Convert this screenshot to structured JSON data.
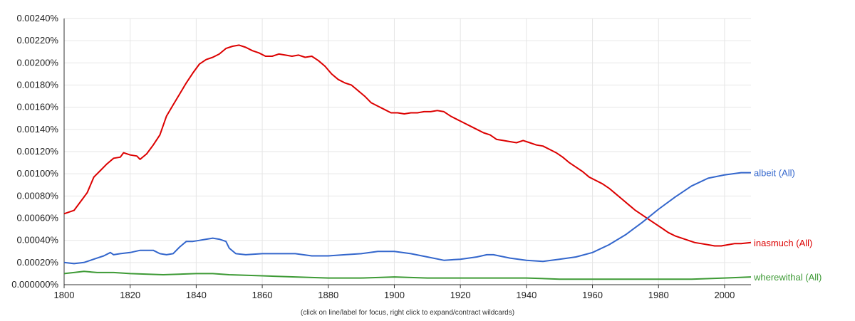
{
  "chart_data": {
    "type": "line",
    "x_ticks": [
      1800,
      1820,
      1840,
      1860,
      1880,
      1900,
      1920,
      1940,
      1960,
      1980,
      2000
    ],
    "xlim": [
      1800,
      2008
    ],
    "y_ticks": [
      "0.000000%",
      "0.00020%",
      "0.00040%",
      "0.00060%",
      "0.00080%",
      "0.00100%",
      "0.00120%",
      "0.00140%",
      "0.00160%",
      "0.00180%",
      "0.00200%",
      "0.00220%",
      "0.00240%"
    ],
    "ylim": [
      0,
      0.0024
    ],
    "grid": true,
    "footer": "(click on line/label for focus, right click to expand/contract wildcards)",
    "series": [
      {
        "name": "inasmuch (All)",
        "color": "#dc0000",
        "points": [
          [
            1800,
            0.00064
          ],
          [
            1803,
            0.00067
          ],
          [
            1805,
            0.00075
          ],
          [
            1807,
            0.00083
          ],
          [
            1809,
            0.00097
          ],
          [
            1811,
            0.00103
          ],
          [
            1813,
            0.00109
          ],
          [
            1815,
            0.00114
          ],
          [
            1817,
            0.00115
          ],
          [
            1818,
            0.00119
          ],
          [
            1820,
            0.00117
          ],
          [
            1822,
            0.00116
          ],
          [
            1823,
            0.00113
          ],
          [
            1825,
            0.00118
          ],
          [
            1827,
            0.00126
          ],
          [
            1829,
            0.00135
          ],
          [
            1831,
            0.00152
          ],
          [
            1833,
            0.00162
          ],
          [
            1835,
            0.00172
          ],
          [
            1837,
            0.00182
          ],
          [
            1839,
            0.00191
          ],
          [
            1841,
            0.00199
          ],
          [
            1843,
            0.00203
          ],
          [
            1845,
            0.00205
          ],
          [
            1847,
            0.00208
          ],
          [
            1849,
            0.00213
          ],
          [
            1851,
            0.00215
          ],
          [
            1853,
            0.00216
          ],
          [
            1855,
            0.00214
          ],
          [
            1857,
            0.00211
          ],
          [
            1859,
            0.00209
          ],
          [
            1861,
            0.00206
          ],
          [
            1863,
            0.00206
          ],
          [
            1865,
            0.00208
          ],
          [
            1867,
            0.00207
          ],
          [
            1869,
            0.00206
          ],
          [
            1871,
            0.00207
          ],
          [
            1873,
            0.00205
          ],
          [
            1875,
            0.00206
          ],
          [
            1877,
            0.00202
          ],
          [
            1879,
            0.00197
          ],
          [
            1881,
            0.0019
          ],
          [
            1883,
            0.00185
          ],
          [
            1885,
            0.00182
          ],
          [
            1887,
            0.0018
          ],
          [
            1889,
            0.00175
          ],
          [
            1891,
            0.0017
          ],
          [
            1893,
            0.00164
          ],
          [
            1895,
            0.00161
          ],
          [
            1897,
            0.00158
          ],
          [
            1899,
            0.00155
          ],
          [
            1901,
            0.00155
          ],
          [
            1903,
            0.00154
          ],
          [
            1905,
            0.00155
          ],
          [
            1907,
            0.00155
          ],
          [
            1909,
            0.00156
          ],
          [
            1911,
            0.00156
          ],
          [
            1913,
            0.00157
          ],
          [
            1915,
            0.00156
          ],
          [
            1917,
            0.00152
          ],
          [
            1919,
            0.00149
          ],
          [
            1921,
            0.00146
          ],
          [
            1923,
            0.00143
          ],
          [
            1925,
            0.0014
          ],
          [
            1927,
            0.00137
          ],
          [
            1929,
            0.00135
          ],
          [
            1931,
            0.00131
          ],
          [
            1933,
            0.0013
          ],
          [
            1935,
            0.00129
          ],
          [
            1937,
            0.00128
          ],
          [
            1939,
            0.0013
          ],
          [
            1941,
            0.00128
          ],
          [
            1943,
            0.00126
          ],
          [
            1945,
            0.00125
          ],
          [
            1947,
            0.00122
          ],
          [
            1949,
            0.00119
          ],
          [
            1951,
            0.00115
          ],
          [
            1953,
            0.0011
          ],
          [
            1955,
            0.00106
          ],
          [
            1957,
            0.00102
          ],
          [
            1959,
            0.00097
          ],
          [
            1961,
            0.00094
          ],
          [
            1963,
            0.00091
          ],
          [
            1965,
            0.00087
          ],
          [
            1967,
            0.00082
          ],
          [
            1969,
            0.00077
          ],
          [
            1971,
            0.00072
          ],
          [
            1973,
            0.00067
          ],
          [
            1975,
            0.00063
          ],
          [
            1977,
            0.00059
          ],
          [
            1979,
            0.00055
          ],
          [
            1981,
            0.00051
          ],
          [
            1983,
            0.00047
          ],
          [
            1985,
            0.00044
          ],
          [
            1987,
            0.00042
          ],
          [
            1989,
            0.0004
          ],
          [
            1991,
            0.00038
          ],
          [
            1993,
            0.00037
          ],
          [
            1995,
            0.00036
          ],
          [
            1997,
            0.00035
          ],
          [
            1999,
            0.00035
          ],
          [
            2001,
            0.00036
          ],
          [
            2003,
            0.00037
          ],
          [
            2005,
            0.00037
          ],
          [
            2008,
            0.00038
          ]
        ]
      },
      {
        "name": "albeit (All)",
        "color": "#3366cc",
        "points": [
          [
            1800,
            0.0002
          ],
          [
            1803,
            0.00019
          ],
          [
            1806,
            0.0002
          ],
          [
            1808,
            0.00022
          ],
          [
            1810,
            0.00024
          ],
          [
            1812,
            0.00026
          ],
          [
            1814,
            0.00029
          ],
          [
            1815,
            0.00027
          ],
          [
            1817,
            0.00028
          ],
          [
            1820,
            0.00029
          ],
          [
            1823,
            0.00031
          ],
          [
            1825,
            0.00031
          ],
          [
            1827,
            0.00031
          ],
          [
            1829,
            0.00028
          ],
          [
            1831,
            0.00027
          ],
          [
            1833,
            0.00028
          ],
          [
            1835,
            0.00034
          ],
          [
            1837,
            0.00039
          ],
          [
            1839,
            0.00039
          ],
          [
            1841,
            0.0004
          ],
          [
            1843,
            0.00041
          ],
          [
            1845,
            0.00042
          ],
          [
            1847,
            0.00041
          ],
          [
            1849,
            0.00039
          ],
          [
            1850,
            0.00033
          ],
          [
            1852,
            0.00028
          ],
          [
            1855,
            0.00027
          ],
          [
            1860,
            0.00028
          ],
          [
            1865,
            0.00028
          ],
          [
            1870,
            0.00028
          ],
          [
            1875,
            0.00026
          ],
          [
            1880,
            0.00026
          ],
          [
            1885,
            0.00027
          ],
          [
            1890,
            0.00028
          ],
          [
            1895,
            0.0003
          ],
          [
            1900,
            0.0003
          ],
          [
            1905,
            0.00028
          ],
          [
            1910,
            0.00025
          ],
          [
            1915,
            0.00022
          ],
          [
            1920,
            0.00023
          ],
          [
            1925,
            0.00025
          ],
          [
            1928,
            0.00027
          ],
          [
            1930,
            0.00027
          ],
          [
            1935,
            0.00024
          ],
          [
            1940,
            0.00022
          ],
          [
            1945,
            0.00021
          ],
          [
            1950,
            0.00023
          ],
          [
            1955,
            0.00025
          ],
          [
            1960,
            0.00029
          ],
          [
            1965,
            0.00036
          ],
          [
            1970,
            0.00045
          ],
          [
            1975,
            0.00056
          ],
          [
            1980,
            0.00068
          ],
          [
            1985,
            0.00079
          ],
          [
            1990,
            0.00089
          ],
          [
            1995,
            0.00096
          ],
          [
            2000,
            0.00099
          ],
          [
            2005,
            0.00101
          ],
          [
            2008,
            0.00101
          ]
        ]
      },
      {
        "name": "wherewithal (All)",
        "color": "#3d9a35",
        "points": [
          [
            1800,
            0.0001
          ],
          [
            1803,
            0.00011
          ],
          [
            1806,
            0.00012
          ],
          [
            1810,
            0.00011
          ],
          [
            1815,
            0.00011
          ],
          [
            1820,
            0.0001
          ],
          [
            1830,
            9e-05
          ],
          [
            1840,
            0.0001
          ],
          [
            1845,
            0.0001
          ],
          [
            1850,
            9e-05
          ],
          [
            1860,
            8e-05
          ],
          [
            1870,
            7e-05
          ],
          [
            1880,
            6e-05
          ],
          [
            1890,
            6e-05
          ],
          [
            1900,
            7e-05
          ],
          [
            1910,
            6e-05
          ],
          [
            1920,
            6e-05
          ],
          [
            1930,
            6e-05
          ],
          [
            1940,
            6e-05
          ],
          [
            1950,
            5e-05
          ],
          [
            1960,
            5e-05
          ],
          [
            1970,
            5e-05
          ],
          [
            1980,
            5e-05
          ],
          [
            1990,
            5e-05
          ],
          [
            2000,
            6e-05
          ],
          [
            2008,
            7e-05
          ]
        ]
      }
    ]
  }
}
